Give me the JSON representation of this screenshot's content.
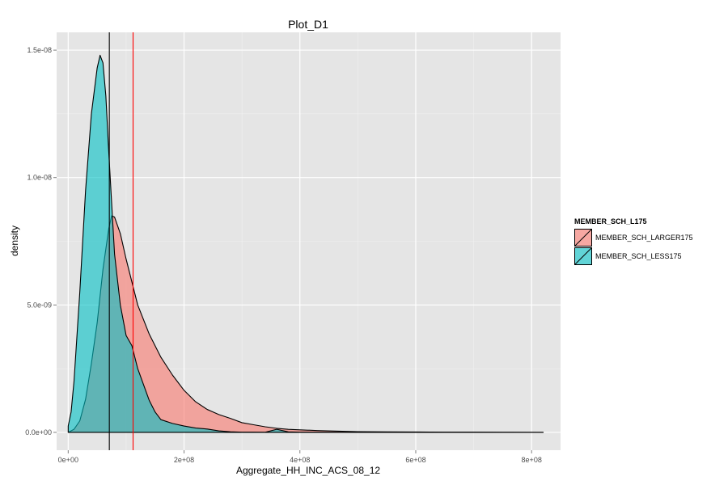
{
  "chart_data": {
    "type": "area",
    "title": "Plot_D1",
    "xlabel": "Aggregate_HH_INC_ACS_08_12",
    "ylabel": "density",
    "xlim": [
      -20000000.0,
      850000000.0
    ],
    "ylim": [
      -7e-10,
      1.57e-08
    ],
    "x_ticks": [
      0,
      200000000,
      400000000,
      600000000,
      800000000
    ],
    "x_tick_labels": [
      "0e+00",
      "2e+08",
      "4e+08",
      "6e+08",
      "8e+08"
    ],
    "y_ticks": [
      0,
      5e-09,
      1e-08,
      1.5e-08
    ],
    "y_tick_labels": [
      "0.0e+00",
      "5.0e-09",
      "1.0e-08",
      "1.5e-08"
    ],
    "grid": true,
    "legend": {
      "title": "MEMBER_SCH_L175",
      "position": "right"
    },
    "series": [
      {
        "name": "MEMBER_SCH_LARGER175",
        "color": "#F8766D",
        "fill_opacity": 0.6,
        "x": [
          0,
          10000000,
          20000000,
          30000000,
          40000000,
          50000000,
          60000000,
          70000000,
          75000000,
          80000000,
          90000000,
          100000000,
          110000000,
          120000000,
          140000000,
          160000000,
          180000000,
          200000000,
          220000000,
          240000000,
          260000000,
          280000000,
          300000000,
          320000000,
          340000000,
          360000000,
          380000000,
          400000000,
          430000000,
          460000000,
          500000000,
          550000000,
          600000000,
          650000000,
          700000000,
          750000000,
          820000000
        ],
        "y": [
          0,
          1.2e-10,
          4.5e-10,
          1.3e-09,
          2.7e-09,
          4.3e-09,
          6.4e-09,
          8e-09,
          8.5e-09,
          8.45e-09,
          7.8e-09,
          6.8e-09,
          5.9e-09,
          5e-09,
          3.85e-09,
          2.95e-09,
          2.25e-09,
          1.65e-09,
          1.2e-09,
          9e-10,
          7e-10,
          5.5e-10,
          3.8e-10,
          3e-10,
          2.2e-10,
          1.6e-10,
          1.2e-10,
          1e-10,
          7e-11,
          5e-11,
          3e-11,
          2e-11,
          1.5e-11,
          1e-11,
          1e-11,
          5e-12,
          0
        ]
      },
      {
        "name": "MEMBER_SCH_LESS175",
        "color": "#00BFC4",
        "fill_opacity": 0.6,
        "x": [
          0,
          5000000,
          10000000,
          20000000,
          30000000,
          40000000,
          50000000,
          55000000,
          60000000,
          65000000,
          70000000,
          80000000,
          90000000,
          100000000,
          110000000,
          120000000,
          140000000,
          150000000,
          160000000,
          180000000,
          200000000,
          220000000,
          240000000,
          260000000,
          280000000,
          300000000,
          320000000,
          340000000,
          360000000,
          380000000,
          400000000,
          500000000,
          600000000,
          820000000
        ],
        "y": [
          2.5e-10,
          8e-10,
          2e-09,
          5.5e-09,
          9.5e-09,
          1.25e-08,
          1.43e-08,
          1.48e-08,
          1.45e-08,
          1.32e-08,
          1.1e-08,
          7e-09,
          5e-09,
          3.8e-09,
          3.4e-09,
          2.5e-09,
          1.25e-09,
          8e-10,
          5e-10,
          3.5e-10,
          2.5e-10,
          1.7e-10,
          1.3e-10,
          6e-11,
          2.5e-11,
          1e-11,
          8e-12,
          4e-12,
          1.2e-10,
          2e-11,
          1e-11,
          5e-12,
          3e-12,
          0
        ]
      }
    ],
    "vlines": [
      {
        "x": 71000000,
        "color": "#000000"
      },
      {
        "x": 112000000,
        "color": "#FF0000"
      }
    ]
  }
}
